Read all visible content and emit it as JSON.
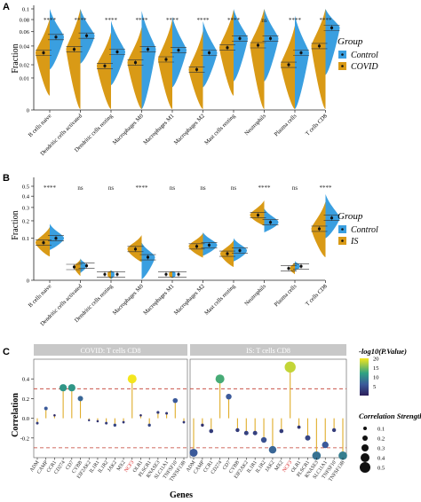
{
  "panels": [
    "A",
    "B",
    "C"
  ],
  "colors": {
    "control": "#3a9fe0",
    "covid": "#d99a16",
    "is": "#d99a16",
    "sig": "#222222",
    "facet_bg": "#c8c8c8",
    "stem": "#e0ad2a",
    "threshold": "#c0392b",
    "gene_highlight": "#d62020"
  },
  "chart_data": [
    {
      "type": "violin",
      "panel": "A",
      "title": "",
      "ylabel": "Fraction",
      "y_scale": "sqrt",
      "ylim": [
        0,
        0.1
      ],
      "yticks": [
        "0",
        "0.01",
        "0.02",
        "0.04",
        "0.06",
        "0.08",
        "0.1"
      ],
      "ytick_values": [
        0,
        0.01,
        0.02,
        0.04,
        0.06,
        0.08,
        0.1
      ],
      "categories": [
        "B cells naive",
        "Dendritic cells activated",
        "Dendritic cells resting",
        "Macrophages M0",
        "Macrophages M1",
        "Macrophages M2",
        "Mast cells resting",
        "Neutrophils",
        "Plasma cells",
        "T cells CD8"
      ],
      "significance": [
        "****",
        "****",
        "****",
        "****",
        "****",
        "****",
        "****",
        "ns",
        "****",
        "****"
      ],
      "series": [
        {
          "name": "COVID",
          "means": [
            0.032,
            0.036,
            0.019,
            0.022,
            0.025,
            0.016,
            0.038,
            0.041,
            0.02,
            0.04
          ],
          "spread": [
            0.05,
            0.085,
            0.04,
            0.045,
            0.055,
            0.045,
            0.06,
            0.07,
            0.05,
            0.075
          ]
        },
        {
          "name": "Control",
          "means": [
            0.052,
            0.054,
            0.033,
            0.036,
            0.035,
            0.032,
            0.05,
            0.05,
            0.032,
            0.066
          ],
          "spread": [
            0.06,
            0.055,
            0.045,
            0.06,
            0.05,
            0.045,
            0.07,
            0.07,
            0.055,
            0.09
          ]
        }
      ],
      "legend": {
        "title": "Group",
        "items": [
          "Control",
          "COVID"
        ],
        "position": "right"
      }
    },
    {
      "type": "violin",
      "panel": "B",
      "title": "",
      "ylabel": "Fraction",
      "y_scale": "sqrt",
      "ylim": [
        0,
        0.5
      ],
      "yticks": [
        "0",
        "0.1",
        "0.2",
        "0.3",
        "0.4",
        "0.5"
      ],
      "ytick_values": [
        0,
        0.1,
        0.2,
        0.3,
        0.4,
        0.5
      ],
      "categories": [
        "B cells naive",
        "Dendritic cells activated",
        "Dendritic cells resting",
        "Macrophages M0",
        "Macrophages M1",
        "Macrophages M2",
        "Mast cells resting",
        "Neutrophils",
        "Plasma cells",
        "T cells CD8"
      ],
      "significance": [
        "****",
        "ns",
        "ns",
        "****",
        "ns",
        "ns",
        "ns",
        "****",
        "ns",
        "****"
      ],
      "series": [
        {
          "name": "IS",
          "means": [
            0.08,
            0.01,
            0.002,
            0.055,
            0.002,
            0.065,
            0.04,
            0.24,
            0.008,
            0.15
          ],
          "spread": [
            0.08,
            0.015,
            0.004,
            0.06,
            0.003,
            0.06,
            0.05,
            0.12,
            0.01,
            0.2
          ]
        },
        {
          "name": "Control",
          "means": [
            0.1,
            0.012,
            0.002,
            0.03,
            0.002,
            0.07,
            0.05,
            0.19,
            0.011,
            0.22
          ],
          "spread": [
            0.08,
            0.015,
            0.004,
            0.05,
            0.003,
            0.06,
            0.05,
            0.1,
            0.01,
            0.2
          ]
        }
      ],
      "legend": {
        "title": "Group",
        "items": [
          "Control",
          "IS"
        ],
        "position": "right"
      }
    },
    {
      "type": "lollipop",
      "panel": "C",
      "title": "",
      "xlabel": "Genes",
      "ylabel": "Correlation",
      "ylim": [
        -0.4,
        0.6
      ],
      "yticks": [
        "-0.2",
        "0.0",
        "0.2",
        "0.4"
      ],
      "ytick_values": [
        -0.2,
        0,
        0.2,
        0.4
      ],
      "threshold": [
        0.3,
        -0.3
      ],
      "genes": [
        "ADM",
        "CAMP",
        "CCR1",
        "CD274",
        "CD7",
        "CYBB",
        "EIF2AK2",
        "IL1R1",
        "IL1R2",
        "JAK2",
        "MX2",
        "NCF3",
        "OLR1",
        "PLSCR1",
        "RNASE3",
        "SLC11A1",
        "TNFSF10",
        "TNFSF13B"
      ],
      "highlight_gene": "NCF3",
      "facets": [
        {
          "label": "COVID: T cells CD8",
          "corr": [
            -0.05,
            0.1,
            0.03,
            0.31,
            0.31,
            0.2,
            -0.02,
            -0.03,
            -0.05,
            -0.07,
            -0.04,
            0.4,
            0.03,
            -0.07,
            0.06,
            0.05,
            0.18,
            -0.04
          ],
          "log10p": [
            3,
            6,
            1,
            11,
            11,
            7,
            2,
            2,
            3,
            4,
            2.5,
            20,
            1.5,
            4,
            3,
            2.5,
            6,
            2.5
          ]
        },
        {
          "label": "IS: T cells CD8",
          "corr": [
            -0.35,
            -0.07,
            -0.13,
            0.4,
            0.22,
            -0.12,
            -0.15,
            -0.15,
            -0.22,
            -0.32,
            -0.13,
            0.52,
            -0.09,
            -0.2,
            -0.38,
            -0.27,
            -0.12,
            -0.38
          ],
          "log10p": [
            6,
            2,
            3,
            13,
            6,
            3,
            3.5,
            3.5,
            5,
            7,
            3,
            18,
            2.5,
            4,
            8,
            6,
            3,
            9
          ]
        }
      ],
      "color_legend": {
        "title": "-log10(P.Value)",
        "range": [
          0,
          20
        ],
        "ticks": [
          "5",
          "10",
          "15",
          "20"
        ]
      },
      "size_legend": {
        "title": "Correlation Strength",
        "items": [
          "0.1",
          "0.2",
          "0.3",
          "0.4",
          "0.5"
        ]
      }
    }
  ]
}
